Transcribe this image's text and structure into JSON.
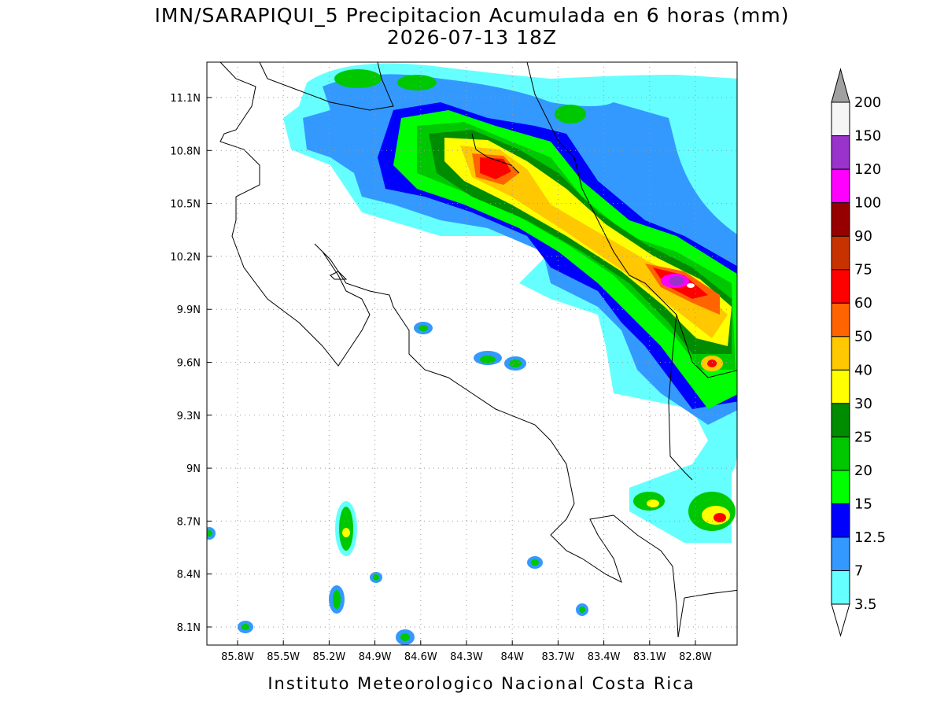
{
  "title": "IMN/SARAPIQUI_5 Precipitacion Acumulada en 6 horas (mm)",
  "subtitle": "2026-07-13 18Z",
  "lon_labels": [
    "85.8W",
    "85.5W",
    "85.2W",
    "84.9W",
    "84.6W",
    "84.3W",
    "84W",
    "83.7W",
    "83.4W",
    "83.1W",
    "82.8W"
  ],
  "lat_labels": [
    "11.1N",
    "10.8N",
    "10.5N",
    "10.2N",
    "9.9N",
    "9.6N",
    "9.3N",
    "9N",
    "8.7N",
    "8.4N",
    "8.1N"
  ],
  "colorbar": {
    "levels": [
      "3.5",
      "7",
      "12.5",
      "15",
      "20",
      "25",
      "30",
      "40",
      "50",
      "60",
      "75",
      "90",
      "100",
      "120",
      "150",
      "200"
    ],
    "colors": [
      "#ffffff",
      "#66ffff",
      "#3399ff",
      "#0000ff",
      "#00ff00",
      "#00c800",
      "#008c00",
      "#ffff00",
      "#ffc800",
      "#ff6400",
      "#ff0000",
      "#c83200",
      "#960000",
      "#ff00ff",
      "#9933cc",
      "#f5f5f5",
      "#a0a0a0"
    ]
  },
  "footer": "Instituto Meteorologico Nacional Costa Rica"
}
